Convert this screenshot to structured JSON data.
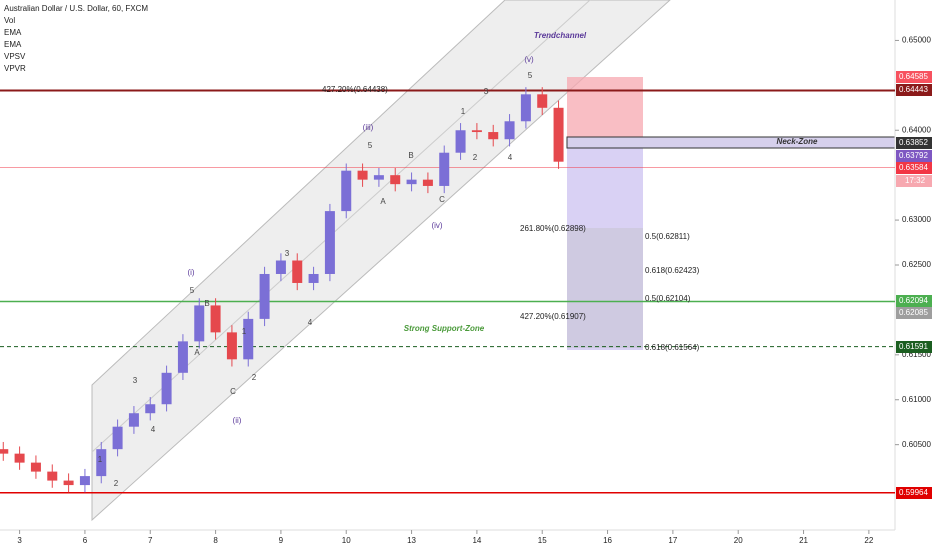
{
  "chart_data": {
    "type": "candlestick",
    "title": "Australian Dollar / U.S. Dollar, 60, FXCM",
    "indicators": [
      "Vol",
      "EMA",
      "EMA",
      "VPSV",
      "VPVR"
    ],
    "x": [
      -0.25,
      0,
      0.25,
      0.5,
      0.75,
      1,
      1.25,
      1.5,
      1.75,
      2,
      2.25,
      2.5,
      2.75,
      3,
      3.25,
      3.5,
      3.75,
      4,
      4.25,
      4.5,
      4.75,
      5,
      5.25,
      5.5,
      5.75,
      6,
      6.25,
      6.5,
      6.75,
      7,
      7.25,
      7.5,
      7.75,
      8,
      8.25
    ],
    "open": [
      0.6045,
      0.604,
      0.603,
      0.602,
      0.601,
      0.6005,
      0.6015,
      0.6045,
      0.607,
      0.6085,
      0.6095,
      0.613,
      0.6165,
      0.6205,
      0.6175,
      0.6145,
      0.619,
      0.624,
      0.6255,
      0.623,
      0.624,
      0.631,
      0.6355,
      0.6345,
      0.635,
      0.634,
      0.6345,
      0.6338,
      0.6375,
      0.64,
      0.6398,
      0.639,
      0.641,
      0.644,
      0.6425
    ],
    "high": [
      0.6053,
      0.6048,
      0.6038,
      0.6028,
      0.6018,
      0.6023,
      0.6053,
      0.6078,
      0.6093,
      0.6103,
      0.6138,
      0.6173,
      0.6213,
      0.6213,
      0.6183,
      0.6198,
      0.6248,
      0.6263,
      0.6263,
      0.6248,
      0.6318,
      0.6363,
      0.6363,
      0.6358,
      0.6358,
      0.6353,
      0.6353,
      0.6383,
      0.6408,
      0.6408,
      0.6406,
      0.6418,
      0.6448,
      0.6448,
      0.6433
    ],
    "low": [
      0.6032,
      0.6022,
      0.6012,
      0.6002,
      0.5997,
      0.5997,
      0.6007,
      0.6037,
      0.6062,
      0.6077,
      0.6087,
      0.6122,
      0.6157,
      0.6167,
      0.6137,
      0.6137,
      0.6182,
      0.6232,
      0.6222,
      0.6222,
      0.6232,
      0.6302,
      0.6337,
      0.6337,
      0.6332,
      0.6332,
      0.633,
      0.633,
      0.6367,
      0.639,
      0.6382,
      0.6382,
      0.6402,
      0.6417,
      0.6357
    ],
    "close": [
      0.604,
      0.603,
      0.602,
      0.601,
      0.6005,
      0.6015,
      0.6045,
      0.607,
      0.6085,
      0.6095,
      0.613,
      0.6165,
      0.6205,
      0.6175,
      0.6145,
      0.619,
      0.624,
      0.6255,
      0.623,
      0.624,
      0.631,
      0.6355,
      0.6345,
      0.635,
      0.634,
      0.6345,
      0.6338,
      0.6375,
      0.64,
      0.6398,
      0.639,
      0.641,
      0.644,
      0.6425,
      0.6365
    ],
    "up_color": "#7b6fd6",
    "down_color": "#e5484d",
    "xlim": [
      -0.3,
      13.4
    ],
    "xticks": [
      {
        "value": 0,
        "label": "3"
      },
      {
        "value": 1,
        "label": "6"
      },
      {
        "value": 2,
        "label": "7"
      },
      {
        "value": 3,
        "label": "8"
      },
      {
        "value": 4,
        "label": "9"
      },
      {
        "value": 5,
        "label": "10"
      },
      {
        "value": 6,
        "label": "13"
      },
      {
        "value": 7,
        "label": "14"
      },
      {
        "value": 8,
        "label": "15"
      },
      {
        "value": 9,
        "label": "16"
      },
      {
        "value": 10,
        "label": "17"
      },
      {
        "value": 11,
        "label": "20"
      },
      {
        "value": 12,
        "label": "21"
      },
      {
        "value": 13,
        "label": "22"
      }
    ],
    "ylim": [
      0.5955,
      0.6545
    ],
    "yticks": [
      {
        "value": 0.65,
        "label": "0.65000"
      },
      {
        "value": 0.64,
        "label": "0.64000"
      },
      {
        "value": 0.63,
        "label": "0.63000"
      },
      {
        "value": 0.625,
        "label": "0.62500"
      },
      {
        "value": 0.615,
        "label": "0.61500"
      },
      {
        "value": 0.61,
        "label": "0.61000"
      },
      {
        "value": 0.605,
        "label": "0.60500"
      }
    ],
    "levels": [
      {
        "value": 0.64585,
        "color": "#f7525f"
      },
      {
        "value": 0.64443,
        "color": "#8b1a1a"
      },
      {
        "value": 0.63852,
        "color": "#333333"
      },
      {
        "value": 0.63792,
        "color": "#7e57c2"
      },
      {
        "value": 0.63584,
        "color": "#f23645"
      },
      {
        "value": 0.62094,
        "color": "#4caf50"
      },
      {
        "value": 0.62085,
        "color": "#9e9e9e"
      },
      {
        "value": 0.61591,
        "color": "#1b5e20"
      },
      {
        "value": 0.59964,
        "color": "#e00000"
      }
    ],
    "countdown": "17:32",
    "fib_labels": [
      "427.20%(0.64438)",
      "261.80%(0.62898)",
      "0.5(0.62811)",
      "0.618(0.62423)",
      "0.5(0.62104)",
      "427.20%(0.61907)",
      "0.618(0.61564)"
    ],
    "annotations": [
      "Trendchannel",
      "(v)",
      "Neck-Zone",
      "Strong Support-Zone",
      "(iii)",
      "(iv)",
      "(i)",
      "(ii)",
      "5",
      "3",
      "1",
      "2",
      "4",
      "B",
      "A",
      "C",
      "5",
      "3",
      "1",
      "2",
      "4",
      "5",
      "B",
      "A",
      "C",
      "3",
      "4",
      "1",
      "2"
    ]
  }
}
